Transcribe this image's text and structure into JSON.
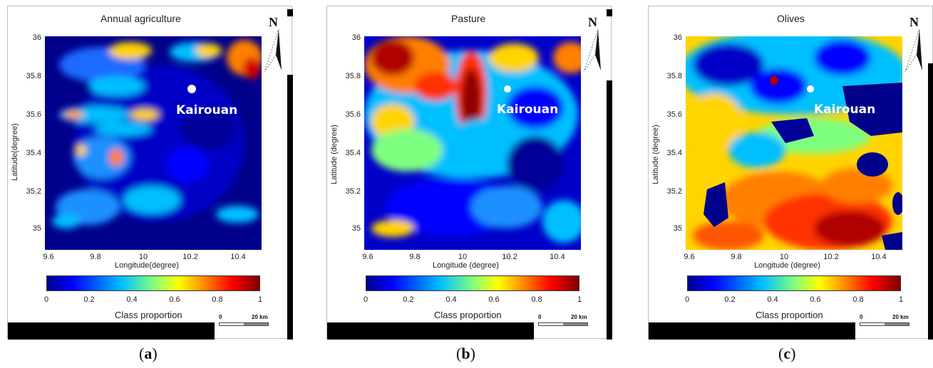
{
  "panels": [
    {
      "title": "Annual agriculture",
      "caption_letter": "a",
      "xlabel": "Longitude(degree)",
      "ylabel": "Latitude(degree)",
      "city": "Kairouan"
    },
    {
      "title": "Pasture",
      "caption_letter": "b",
      "xlabel": "Longitude (degree)",
      "ylabel": "Latitude (degree)",
      "city": "Kairouan"
    },
    {
      "title": "Olives",
      "caption_letter": "c",
      "xlabel": "Longitude (degree)",
      "ylabel": "Latitude (degree)",
      "city": "Kairouan"
    }
  ],
  "axes": {
    "x_ticks": [
      "9.6",
      "9.8",
      "10",
      "10.2",
      "10.4"
    ],
    "y_ticks": [
      "36",
      "35.8",
      "35.6",
      "35.4",
      "35.2",
      "35"
    ]
  },
  "colorbar": {
    "ticks": [
      "0",
      "0.2",
      "0.4",
      "0.6",
      "0.8",
      "1"
    ],
    "label": "Class proportion",
    "colors": [
      "#00008f",
      "#0000ff",
      "#00bfff",
      "#7fff7f",
      "#ffff00",
      "#ff7f00",
      "#ff0000",
      "#800000"
    ]
  },
  "scale_bar": {
    "start": "0",
    "end": "20 km"
  },
  "north_label": "N",
  "caption_open": "(",
  "caption_close": ")"
}
